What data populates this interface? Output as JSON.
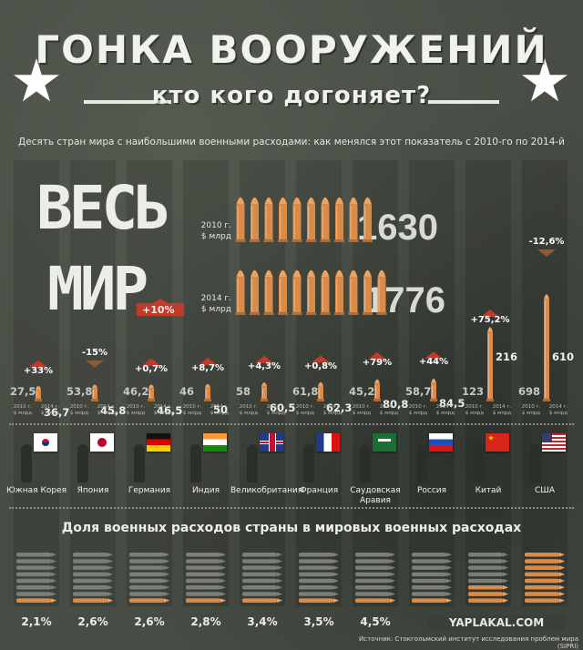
{
  "title": "ГОНКА ВООРУЖЕНИЙ",
  "subtitle": "кто кого догоняет?",
  "description": "Десять стран мира с наибольшими военными расходами: как менялся этот показатель с 2010-го по 2014-й",
  "world": {
    "label_line1": "ВЕСЬ",
    "label_line2": "МИР",
    "change": "+10%",
    "label_2010_a": "2010 г.",
    "label_2010_b": "$ млрд",
    "label_2014_a": "2014 г.",
    "label_2014_b": "$ млрд",
    "value_2010": "1630",
    "value_2014": "1776",
    "bullets_2010": 10,
    "bullets_2014": 11
  },
  "unit_label_a": "2010 г.",
  "unit_label_b": "2014 г.",
  "unit_label_c": "$ млрд",
  "share_title": "Доля военных расходов страны в мировых военных расходах",
  "source": "Источник: Стокгольмский институт исследования проблем мира (SIPRI)",
  "watermark": "YAPLAKAL.COM",
  "colors": {
    "bullet": "#d98b47",
    "up_arrow": "#c33a2a",
    "down_arrow": "#8c5a3a"
  },
  "chart_data": [
    {
      "type": "bar",
      "categories": [
        "Южная Корея",
        "Япония",
        "Германия",
        "Индия",
        "Великобритания",
        "Франция",
        "Саудовская Аравия",
        "Россия",
        "Китай",
        "США"
      ],
      "series": [
        {
          "name": "2010 г.",
          "values": [
            27.5,
            53.8,
            46.2,
            46,
            58,
            61.8,
            45.2,
            58.7,
            123,
            698
          ]
        },
        {
          "name": "2014 г.",
          "values": [
            36.7,
            45.8,
            46.5,
            50,
            60.5,
            62.3,
            80.8,
            84.5,
            216,
            610
          ]
        }
      ],
      "labels_2010": [
        "27,5",
        "53,8",
        "46,2",
        "46",
        "58",
        "61,8",
        "45,2",
        "58,7",
        "123",
        "698"
      ],
      "labels_2014": [
        "36,7",
        "45,8",
        "46,5",
        "50",
        "60,5",
        "62,3",
        "80,8",
        "84,5",
        "216",
        "610"
      ],
      "change": [
        "+33%",
        "-15%",
        "+0,7%",
        "+8,7%",
        "+4,3%",
        "+0,8%",
        "+79%",
        "+44%",
        "+75,2%",
        "-12,6%"
      ],
      "direction": [
        "up",
        "down",
        "up",
        "up",
        "up",
        "up",
        "up",
        "up",
        "up",
        "down"
      ]
    },
    {
      "type": "bar",
      "title": "Доля военных расходов страны в мировых военных расходах",
      "categories": [
        "Южная Корея",
        "Япония",
        "Германия",
        "Индия",
        "Великобритания",
        "Франция",
        "Саудовская Аравия",
        "Россия",
        "Китай",
        "США"
      ],
      "values": [
        2.1,
        2.6,
        2.6,
        2.8,
        3.4,
        3.5,
        4.5,
        4.8,
        12.2,
        34.3
      ],
      "labels": [
        "2,1%",
        "2,6%",
        "2,6%",
        "2,8%",
        "3,4%",
        "3,5%",
        "4,5%",
        "",
        "",
        ""
      ]
    }
  ],
  "country_names": [
    [
      "Южная Корея"
    ],
    [
      "Япония"
    ],
    [
      "Германия"
    ],
    [
      "Индия"
    ],
    [
      "Великобритания"
    ],
    [
      "Франция"
    ],
    [
      "Саудовская",
      "Аравия"
    ],
    [
      "Россия"
    ],
    [
      "Китай"
    ],
    [
      "США"
    ]
  ],
  "flags": [
    "south-korea-flag",
    "japan-flag",
    "germany-flag",
    "india-flag",
    "uk-flag",
    "france-flag",
    "saudi-arabia-flag",
    "russia-flag",
    "china-flag",
    "usa-flag"
  ]
}
